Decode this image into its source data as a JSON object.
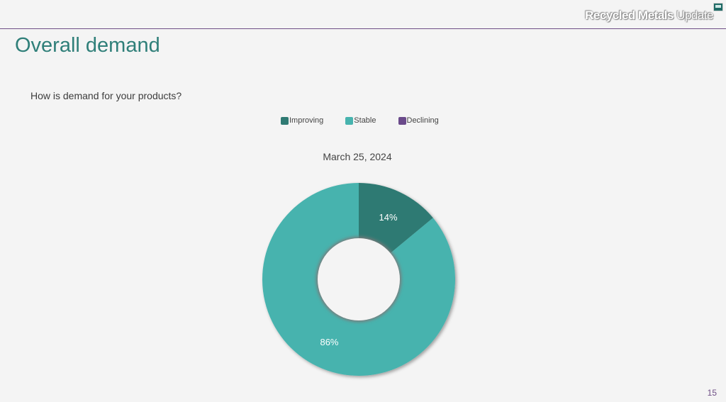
{
  "header": {
    "brand_bold": "Recycled Metals",
    "brand_thin": " Update",
    "icon": "monitor-icon"
  },
  "slide": {
    "title": "Overall demand",
    "question": "How is demand for your products?",
    "page_number": "15"
  },
  "colors": {
    "improving": "#2f7a73",
    "stable": "#47b3ae",
    "declining": "#6a4a8a",
    "title": "#2f7f79",
    "accent": "#6f4f86"
  },
  "chart_data": {
    "type": "pie",
    "subtype": "donut",
    "title": "March 25, 2024",
    "categories": [
      "Improving",
      "Stable",
      "Declining"
    ],
    "values": [
      14,
      86,
      0
    ],
    "data_labels": [
      "14%",
      "86%",
      ""
    ],
    "legend_position": "top",
    "legend": [
      "Improving",
      "Stable",
      "Declining"
    ]
  }
}
